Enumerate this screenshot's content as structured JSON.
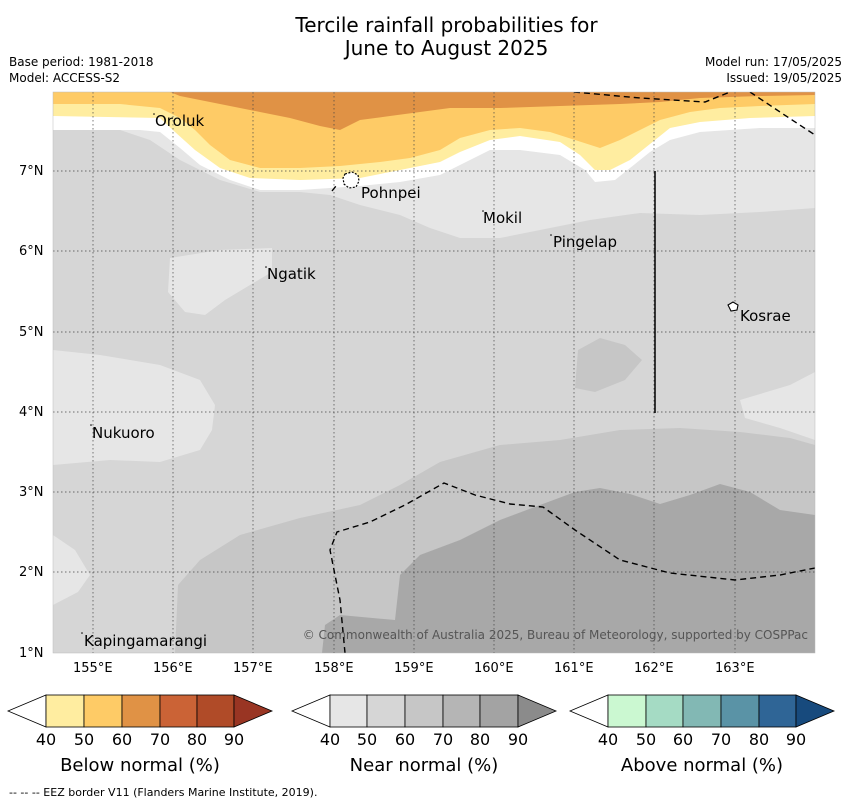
{
  "title_line1": "Tercile rainfall probabilities for",
  "title_line2": "June to August 2025",
  "base_period": "Base period: 1981-2018",
  "model": "Model: ACCESS-S2",
  "model_run": "Model run: 17/05/2025",
  "issued": "Issued: 19/05/2025",
  "lon_ticks": [
    "155°E",
    "156°E",
    "157°E",
    "158°E",
    "159°E",
    "160°E",
    "161°E",
    "162°E",
    "163°E"
  ],
  "lat_ticks": [
    "7°N",
    "6°N",
    "5°N",
    "4°N",
    "3°N",
    "2°N",
    "1°N"
  ],
  "places": [
    {
      "name": "Oroluk"
    },
    {
      "name": "Pohnpei"
    },
    {
      "name": "Mokil"
    },
    {
      "name": "Pingelap"
    },
    {
      "name": "Ngatik"
    },
    {
      "name": "Kosrae"
    },
    {
      "name": "Nukuoro"
    },
    {
      "name": "Kapingamarangi"
    }
  ],
  "copyright": "© Commonwealth of Australia 2025, Bureau of Meteorology, supported by COSPPac",
  "colorbars": [
    {
      "label": "Below normal (%)",
      "ticks": [
        "40",
        "50",
        "60",
        "70",
        "80",
        "90"
      ],
      "colors": [
        "#ffffff",
        "#ffeda0",
        "#fecb66",
        "#e09245",
        "#cb6336",
        "#b04b28",
        "#993523"
      ]
    },
    {
      "label": "Near normal (%)",
      "ticks": [
        "40",
        "50",
        "60",
        "70",
        "80",
        "90"
      ],
      "colors": [
        "#ffffff",
        "#e6e6e6",
        "#d6d6d6",
        "#c6c6c6",
        "#b5b5b5",
        "#a3a3a3",
        "#8b8b8b"
      ]
    },
    {
      "label": "Above normal (%)",
      "ticks": [
        "40",
        "50",
        "60",
        "70",
        "80",
        "90"
      ],
      "colors": [
        "#ffffff",
        "#cbf8d1",
        "#a5dbc4",
        "#82b8b4",
        "#5a93a6",
        "#2f6596",
        "#174a7d"
      ]
    }
  ],
  "footnote": "-- -- -- EEZ border V11 (Flanders Marine Institute, 2019)."
}
